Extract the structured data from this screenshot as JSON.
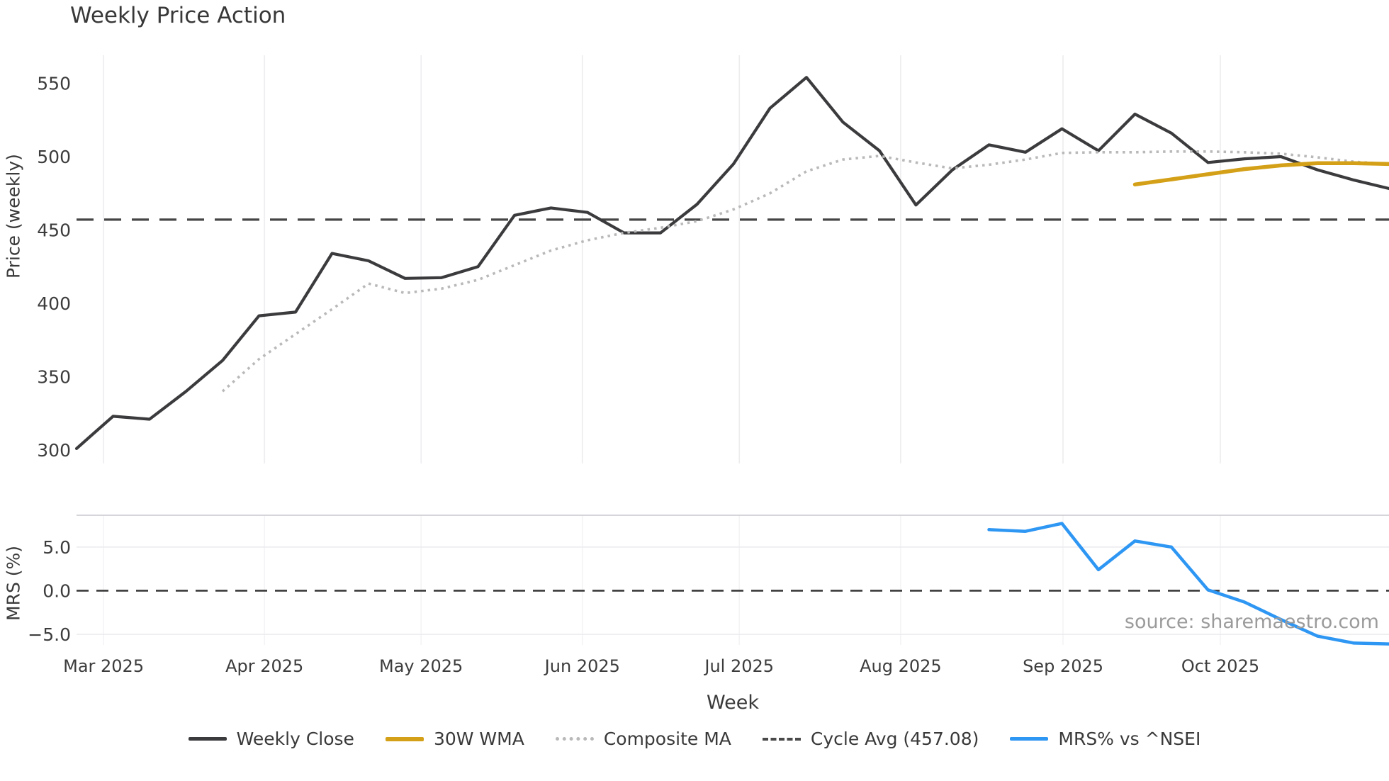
{
  "title": "Weekly Price Action",
  "axes": {
    "price_y_label": "Price (weekly)",
    "mrs_y_label": "MRS (%)",
    "x_label": "Week"
  },
  "source_note": "source: sharemaestro.com",
  "legend": [
    {
      "label": "Weekly Close",
      "style": "solid",
      "color": "#3b3b3d"
    },
    {
      "label": "30W WMA",
      "style": "solid",
      "color": "#d4a017"
    },
    {
      "label": "Composite MA",
      "style": "dotted",
      "color": "#b9b9b9"
    },
    {
      "label": "Cycle Avg (457.08)",
      "style": "dashed",
      "color": "#4a4a4a"
    },
    {
      "label": "MRS% vs ^NSEI",
      "style": "solid",
      "color": "#2e96f3"
    }
  ],
  "chart_data": {
    "type": "line",
    "grid": "vertical-monthly",
    "legend_position": "bottom-center",
    "cycle_avg": 457.08,
    "x": {
      "unit": "week_index",
      "count": 37,
      "ticks": [
        {
          "label": "Mar 2025",
          "week": 0.74
        },
        {
          "label": "Apr 2025",
          "week": 5.15
        },
        {
          "label": "May 2025",
          "week": 9.44
        },
        {
          "label": "Jun 2025",
          "week": 13.86
        },
        {
          "label": "Jul 2025",
          "week": 18.16
        },
        {
          "label": "Aug 2025",
          "week": 22.58
        },
        {
          "label": "Sep 2025",
          "week": 27.03
        },
        {
          "label": "Oct 2025",
          "week": 31.34
        }
      ]
    },
    "panels": [
      {
        "name": "price",
        "ylabel": "Price (weekly)",
        "ylim": [
          287,
          568
        ],
        "y_ticks": [
          {
            "label": "550",
            "value": 550
          },
          {
            "label": "500",
            "value": 500
          },
          {
            "label": "450",
            "value": 450
          },
          {
            "label": "400",
            "value": 400
          },
          {
            "label": "350",
            "value": 350
          },
          {
            "label": "300",
            "value": 300
          }
        ]
      },
      {
        "name": "mrs",
        "ylabel": "MRS (%)",
        "ylim": [
          -7.6,
          9.2
        ],
        "zero_line": "dashed",
        "y_ticks": [
          {
            "label": "5.0",
            "value": 5
          },
          {
            "label": "0.0",
            "value": 0
          },
          {
            "label": "−5.0",
            "value": -5
          }
        ]
      }
    ],
    "series": [
      {
        "name": "Weekly Close",
        "panel": "price",
        "color": "#3b3b3d",
        "style": "solid",
        "width": 4.2,
        "values": [
          301,
          323,
          321,
          340,
          361,
          391.5,
          394,
          434,
          429,
          417,
          417.5,
          425,
          460,
          465,
          462,
          448,
          448,
          467.5,
          495,
          533,
          554,
          523.5,
          504,
          467,
          491,
          508,
          503,
          519,
          504,
          529,
          516,
          496,
          498.5,
          500,
          491,
          484,
          478
        ]
      },
      {
        "name": "Composite MA",
        "panel": "price",
        "color": "#b9b9b9",
        "style": "dotted",
        "width": 3.6,
        "values": [
          null,
          null,
          null,
          null,
          340,
          362,
          379,
          396,
          413.5,
          407,
          410,
          416,
          426,
          436,
          443,
          448,
          451.5,
          456,
          464,
          475,
          490,
          498,
          500.5,
          496,
          492,
          494.5,
          498,
          502.5,
          503,
          503,
          503.5,
          503.5,
          503,
          502,
          499.5,
          496.5,
          495
        ]
      },
      {
        "name": "30W WMA",
        "panel": "price",
        "color": "#d4a017",
        "style": "solid",
        "width": 5.5,
        "values": [
          null,
          null,
          null,
          null,
          null,
          null,
          null,
          null,
          null,
          null,
          null,
          null,
          null,
          null,
          null,
          null,
          null,
          null,
          null,
          null,
          null,
          null,
          null,
          null,
          null,
          null,
          null,
          null,
          null,
          481,
          484.5,
          488,
          491.5,
          494,
          495.5,
          495.5,
          495
        ]
      },
      {
        "name": "MRS% vs ^NSEI",
        "panel": "mrs",
        "color": "#2e96f3",
        "style": "solid",
        "width": 4.5,
        "values": [
          null,
          null,
          null,
          null,
          null,
          null,
          null,
          null,
          null,
          null,
          null,
          null,
          null,
          null,
          null,
          null,
          null,
          null,
          null,
          null,
          null,
          null,
          null,
          null,
          null,
          7.0,
          6.8,
          7.7,
          2.4,
          5.7,
          5.0,
          0.1,
          -1.3,
          -3.3,
          -5.2,
          -6.0,
          -6.1
        ]
      }
    ]
  }
}
